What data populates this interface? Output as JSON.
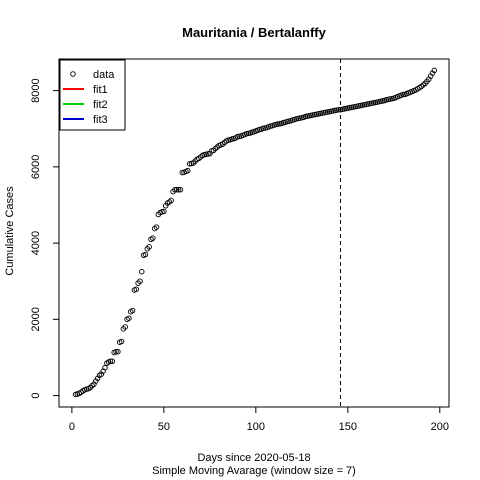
{
  "chart_data": {
    "type": "scatter",
    "title": "Mauritania / Bertalanffy",
    "xlabel": "Days since 2020-05-18",
    "xlabel_sub": "Simple Moving Avarage (window size = 7)",
    "ylabel": "Cumulative Cases",
    "xlim": [
      -7,
      205
    ],
    "ylim": [
      -300,
      8830
    ],
    "x_ticks": [
      0,
      50,
      100,
      150,
      200
    ],
    "y_ticks": [
      0,
      2000,
      4000,
      6000,
      8000
    ],
    "vline_x": 146,
    "legend": {
      "placement": "top-left",
      "entries": [
        {
          "label": "data",
          "kind": "point",
          "color": "#000000"
        },
        {
          "label": "fit1",
          "kind": "line",
          "color": "#ff0000"
        },
        {
          "label": "fit2",
          "kind": "line",
          "color": "#00cc00"
        },
        {
          "label": "fit3",
          "kind": "line",
          "color": "#0000cc"
        }
      ]
    },
    "series": [
      {
        "name": "data",
        "points": [
          [
            2,
            30
          ],
          [
            3,
            40
          ],
          [
            4,
            60
          ],
          [
            5,
            90
          ],
          [
            6,
            120
          ],
          [
            7,
            150
          ],
          [
            8,
            170
          ],
          [
            9,
            180
          ],
          [
            10,
            210
          ],
          [
            11,
            260
          ],
          [
            12,
            300
          ],
          [
            13,
            380
          ],
          [
            14,
            450
          ],
          [
            15,
            530
          ],
          [
            16,
            560
          ],
          [
            17,
            640
          ],
          [
            18,
            730
          ],
          [
            19,
            850
          ],
          [
            20,
            880
          ],
          [
            21,
            900
          ],
          [
            22,
            900
          ],
          [
            23,
            1130
          ],
          [
            24,
            1150
          ],
          [
            25,
            1150
          ],
          [
            26,
            1400
          ],
          [
            27,
            1420
          ],
          [
            28,
            1750
          ],
          [
            29,
            1800
          ],
          [
            30,
            2000
          ],
          [
            31,
            2030
          ],
          [
            32,
            2200
          ],
          [
            33,
            2230
          ],
          [
            34,
            2770
          ],
          [
            35,
            2790
          ],
          [
            36,
            2950
          ],
          [
            37,
            3000
          ],
          [
            38,
            3250
          ],
          [
            39,
            3680
          ],
          [
            40,
            3700
          ],
          [
            41,
            3850
          ],
          [
            42,
            3900
          ],
          [
            43,
            4100
          ],
          [
            44,
            4130
          ],
          [
            45,
            4380
          ],
          [
            46,
            4420
          ],
          [
            47,
            4750
          ],
          [
            48,
            4800
          ],
          [
            49,
            4820
          ],
          [
            50,
            4830
          ],
          [
            51,
            4980
          ],
          [
            52,
            5050
          ],
          [
            53,
            5080
          ],
          [
            54,
            5120
          ],
          [
            55,
            5350
          ],
          [
            56,
            5400
          ],
          [
            57,
            5400
          ],
          [
            58,
            5400
          ],
          [
            59,
            5400
          ],
          [
            60,
            5850
          ],
          [
            61,
            5860
          ],
          [
            62,
            5880
          ],
          [
            63,
            5900
          ],
          [
            64,
            6080
          ],
          [
            65,
            6090
          ],
          [
            66,
            6100
          ],
          [
            67,
            6150
          ],
          [
            68,
            6200
          ],
          [
            69,
            6220
          ],
          [
            70,
            6260
          ],
          [
            71,
            6300
          ],
          [
            72,
            6320
          ],
          [
            73,
            6330
          ],
          [
            74,
            6340
          ],
          [
            75,
            6350
          ],
          [
            76,
            6420
          ],
          [
            77,
            6430
          ],
          [
            78,
            6480
          ],
          [
            79,
            6520
          ],
          [
            80,
            6560
          ],
          [
            81,
            6580
          ],
          [
            82,
            6600
          ],
          [
            83,
            6640
          ],
          [
            84,
            6680
          ],
          [
            85,
            6700
          ],
          [
            86,
            6710
          ],
          [
            87,
            6730
          ],
          [
            88,
            6740
          ],
          [
            89,
            6760
          ],
          [
            90,
            6790
          ],
          [
            91,
            6800
          ],
          [
            92,
            6810
          ],
          [
            93,
            6830
          ],
          [
            94,
            6850
          ],
          [
            95,
            6870
          ],
          [
            96,
            6880
          ],
          [
            97,
            6890
          ],
          [
            98,
            6910
          ],
          [
            99,
            6920
          ],
          [
            100,
            6940
          ],
          [
            101,
            6960
          ],
          [
            102,
            6980
          ],
          [
            103,
            6990
          ],
          [
            104,
            7010
          ],
          [
            105,
            7020
          ],
          [
            106,
            7030
          ],
          [
            107,
            7050
          ],
          [
            108,
            7070
          ],
          [
            109,
            7080
          ],
          [
            110,
            7100
          ],
          [
            111,
            7110
          ],
          [
            112,
            7120
          ],
          [
            113,
            7130
          ],
          [
            114,
            7140
          ],
          [
            115,
            7160
          ],
          [
            116,
            7170
          ],
          [
            117,
            7190
          ],
          [
            118,
            7200
          ],
          [
            119,
            7210
          ],
          [
            120,
            7230
          ],
          [
            121,
            7240
          ],
          [
            122,
            7260
          ],
          [
            123,
            7270
          ],
          [
            124,
            7280
          ],
          [
            125,
            7290
          ],
          [
            126,
            7300
          ],
          [
            127,
            7320
          ],
          [
            128,
            7330
          ],
          [
            129,
            7340
          ],
          [
            130,
            7350
          ],
          [
            131,
            7360
          ],
          [
            132,
            7370
          ],
          [
            133,
            7380
          ],
          [
            134,
            7390
          ],
          [
            135,
            7400
          ],
          [
            136,
            7410
          ],
          [
            137,
            7420
          ],
          [
            138,
            7430
          ],
          [
            139,
            7440
          ],
          [
            140,
            7450
          ],
          [
            141,
            7460
          ],
          [
            142,
            7470
          ],
          [
            143,
            7480
          ],
          [
            144,
            7490
          ],
          [
            145,
            7500
          ],
          [
            146,
            7500
          ],
          [
            147,
            7510
          ],
          [
            148,
            7520
          ],
          [
            149,
            7530
          ],
          [
            150,
            7540
          ],
          [
            151,
            7550
          ],
          [
            152,
            7560
          ],
          [
            153,
            7570
          ],
          [
            154,
            7580
          ],
          [
            155,
            7590
          ],
          [
            156,
            7600
          ],
          [
            157,
            7610
          ],
          [
            158,
            7620
          ],
          [
            159,
            7630
          ],
          [
            160,
            7640
          ],
          [
            161,
            7650
          ],
          [
            162,
            7660
          ],
          [
            163,
            7670
          ],
          [
            164,
            7680
          ],
          [
            165,
            7690
          ],
          [
            166,
            7700
          ],
          [
            167,
            7710
          ],
          [
            168,
            7720
          ],
          [
            169,
            7730
          ],
          [
            170,
            7740
          ],
          [
            171,
            7760
          ],
          [
            172,
            7770
          ],
          [
            173,
            7780
          ],
          [
            174,
            7790
          ],
          [
            175,
            7800
          ],
          [
            176,
            7820
          ],
          [
            177,
            7840
          ],
          [
            178,
            7860
          ],
          [
            179,
            7880
          ],
          [
            180,
            7900
          ],
          [
            181,
            7900
          ],
          [
            182,
            7920
          ],
          [
            183,
            7940
          ],
          [
            184,
            7960
          ],
          [
            185,
            7980
          ],
          [
            186,
            8000
          ],
          [
            187,
            8020
          ],
          [
            188,
            8050
          ],
          [
            189,
            8080
          ],
          [
            190,
            8110
          ],
          [
            191,
            8150
          ],
          [
            192,
            8190
          ],
          [
            193,
            8240
          ],
          [
            194,
            8300
          ],
          [
            195,
            8380
          ],
          [
            196,
            8460
          ],
          [
            197,
            8530
          ]
        ]
      }
    ]
  }
}
